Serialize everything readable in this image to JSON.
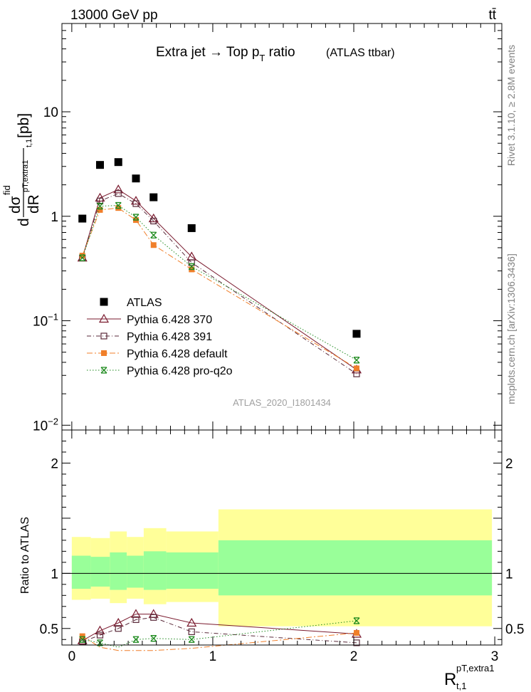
{
  "header": {
    "left": "13000 GeV pp",
    "right": "tt̄"
  },
  "side_text": {
    "rivet": "Rivet 3.1.10, ≥ 2.8M events",
    "mcplots": "mcplots.cern.ch [arXiv:1306.3436]"
  },
  "colors": {
    "data": "#000000",
    "p370": "#7a1a2e",
    "p391": "#5a2a3a",
    "default": "#f07f2a",
    "proq2o": "#1e8a1e",
    "band_outer": "#ffff99",
    "band_inner": "#99ff99"
  },
  "chart_data": [
    {
      "type": "scatter",
      "title": "Extra jet → Top p_T ratio",
      "title_parts": {
        "main": "Extra jet → Top p",
        "sub": "T",
        "ratio": " ratio",
        "tag": "(ATLAS ttbar)"
      },
      "ylabel": "dσ^fid / dR^pT,extra1_t,1 [pb]",
      "ylabel_parts": {
        "d": "d",
        "sigma": "dσ",
        "fid": "fid",
        "dr": "dR",
        "sub1": "pT,extra1",
        "sub2": "t,1",
        "unit": "[pb]"
      },
      "xlabel": "R^pT,extra1_t,1",
      "xlabel_parts": {
        "R": "R",
        "sup": "pT,extra1",
        "sub": "t,1"
      },
      "watermark": "ATLAS_2020_I1801434",
      "y_scale": "log",
      "xlim": [
        -0.07,
        3.05
      ],
      "ylim": [
        0.009,
        70
      ],
      "y_ticks": [
        {
          "v": 0.01,
          "base": "10",
          "exp": "−2"
        },
        {
          "v": 0.1,
          "base": "10",
          "exp": "−1"
        },
        {
          "v": 1,
          "base": "1",
          "exp": ""
        },
        {
          "v": 10,
          "base": "10",
          "exp": ""
        }
      ],
      "legend_position": "lower-left",
      "series": [
        {
          "name": "ATLAS",
          "key": "data",
          "marker": "filled-square",
          "x": [
            0.075,
            0.2,
            0.33,
            0.455,
            0.58,
            0.85,
            2.02
          ],
          "y": [
            0.95,
            3.1,
            3.3,
            2.3,
            1.52,
            0.77,
            0.075
          ]
        },
        {
          "name": "Pythia 6.428 370",
          "key": "p370",
          "marker": "open-triangle",
          "line": "solid",
          "x": [
            0.075,
            0.2,
            0.33,
            0.455,
            0.58,
            0.85,
            2.02
          ],
          "y": [
            0.4,
            1.5,
            1.8,
            1.4,
            0.95,
            0.41,
            0.034
          ]
        },
        {
          "name": "Pythia 6.428 391",
          "key": "p391",
          "marker": "open-square",
          "line": "dashdot",
          "x": [
            0.075,
            0.2,
            0.33,
            0.455,
            0.58,
            0.85,
            2.02
          ],
          "y": [
            0.4,
            1.4,
            1.65,
            1.32,
            0.9,
            0.36,
            0.031
          ]
        },
        {
          "name": "Pythia 6.428 default",
          "key": "default",
          "marker": "filled-square-small",
          "line": "dashdot2",
          "x": [
            0.075,
            0.2,
            0.33,
            0.455,
            0.58,
            0.85,
            2.02
          ],
          "y": [
            0.42,
            1.15,
            1.2,
            0.92,
            0.53,
            0.31,
            0.035
          ]
        },
        {
          "name": "Pythia 6.428 pro-q2o",
          "key": "proq2o",
          "marker": "star",
          "line": "dotted",
          "x": [
            0.075,
            0.2,
            0.33,
            0.455,
            0.58,
            0.85,
            2.02
          ],
          "y": [
            0.4,
            1.25,
            1.27,
            0.98,
            0.66,
            0.33,
            0.042
          ]
        }
      ]
    },
    {
      "type": "line",
      "ylabel": "Ratio to ATLAS",
      "xlim": [
        -0.07,
        3.05
      ],
      "ylim": [
        0.35,
        2.3
      ],
      "x_ticks": [
        {
          "v": 0,
          "label": "0"
        },
        {
          "v": 1,
          "label": "1"
        },
        {
          "v": 2,
          "label": "2"
        },
        {
          "v": 3,
          "label": "3"
        }
      ],
      "y_ticks": [
        {
          "v": 0.5,
          "label": "0.5"
        },
        {
          "v": 1,
          "label": "1"
        },
        {
          "v": 2,
          "label": "2"
        }
      ],
      "bands": [
        {
          "x0": 0.0,
          "x1": 0.135,
          "outer": [
            0.76,
            1.33
          ],
          "inner": [
            0.86,
            1.16
          ]
        },
        {
          "x0": 0.135,
          "x1": 0.27,
          "outer": [
            0.77,
            1.32
          ],
          "inner": [
            0.88,
            1.15
          ]
        },
        {
          "x0": 0.27,
          "x1": 0.39,
          "outer": [
            0.73,
            1.38
          ],
          "inner": [
            0.85,
            1.19
          ]
        },
        {
          "x0": 0.39,
          "x1": 0.51,
          "outer": [
            0.77,
            1.33
          ],
          "inner": [
            0.87,
            1.16
          ]
        },
        {
          "x0": 0.51,
          "x1": 0.67,
          "outer": [
            0.72,
            1.41
          ],
          "inner": [
            0.85,
            1.2
          ]
        },
        {
          "x0": 0.67,
          "x1": 1.04,
          "outer": [
            0.74,
            1.38
          ],
          "inner": [
            0.86,
            1.19
          ]
        },
        {
          "x0": 1.04,
          "x1": 2.98,
          "outer": [
            0.52,
            1.58
          ],
          "inner": [
            0.8,
            1.3
          ]
        }
      ],
      "series": [
        {
          "name": "Pythia 6.428 370",
          "key": "p370",
          "x": [
            0.075,
            0.2,
            0.33,
            0.455,
            0.58,
            0.85,
            2.02
          ],
          "y": [
            0.39,
            0.48,
            0.55,
            0.63,
            0.63,
            0.55,
            0.45
          ]
        },
        {
          "name": "Pythia 6.428 391",
          "key": "p391",
          "x": [
            0.075,
            0.2,
            0.33,
            0.455,
            0.58,
            0.85,
            2.02
          ],
          "y": [
            0.38,
            0.44,
            0.5,
            0.58,
            0.6,
            0.47,
            0.37
          ]
        },
        {
          "name": "Pythia 6.428 default",
          "key": "default",
          "x": [
            0.075,
            0.2,
            0.33,
            0.455,
            0.58,
            0.85,
            2.02
          ],
          "y": [
            0.43,
            0.33,
            0.3,
            0.3,
            0.3,
            0.32,
            0.46
          ]
        },
        {
          "name": "Pythia 6.428 pro-q2o",
          "key": "proq2o",
          "x": [
            0.075,
            0.2,
            0.33,
            0.455,
            0.58,
            0.85,
            2.02
          ],
          "y": [
            0.4,
            0.37,
            0.33,
            0.4,
            0.41,
            0.4,
            0.57
          ]
        }
      ]
    }
  ]
}
